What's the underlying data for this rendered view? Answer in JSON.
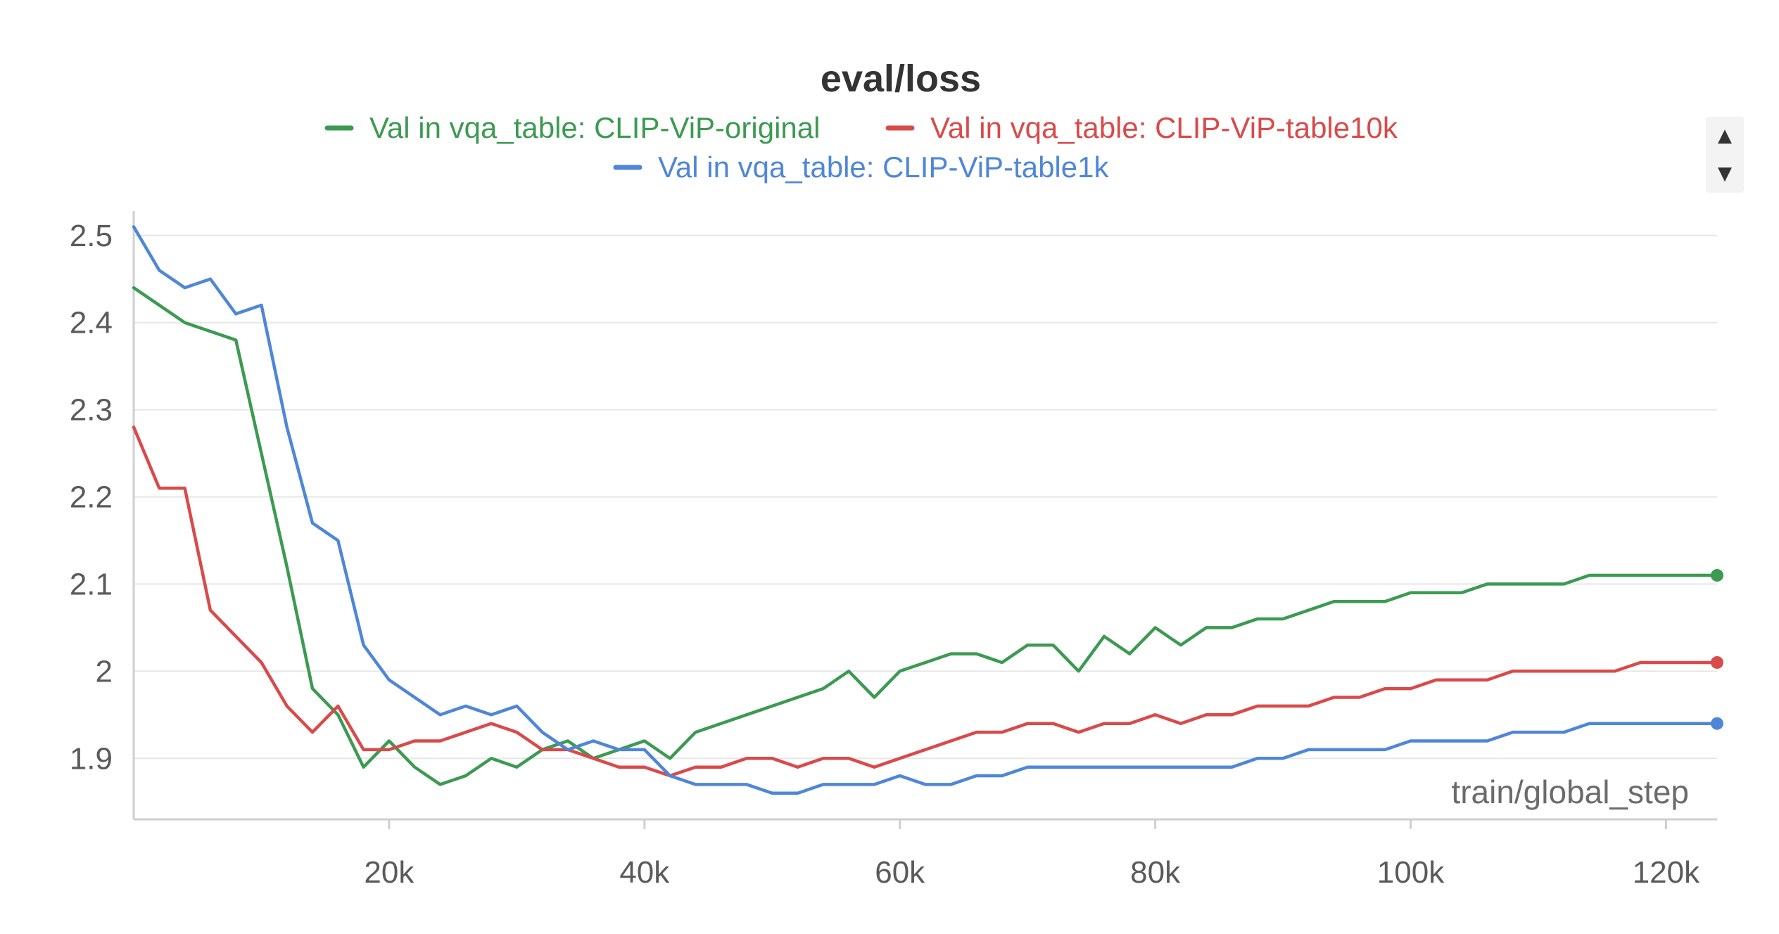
{
  "chart_data": {
    "type": "line",
    "title": "eval/loss",
    "xlabel": "train/global_step",
    "ylabel": "",
    "xlim": [
      0,
      124000
    ],
    "ylim": [
      1.83,
      2.52
    ],
    "xticks": [
      20000,
      40000,
      60000,
      80000,
      100000,
      120000
    ],
    "xtick_labels": [
      "20k",
      "40k",
      "60k",
      "80k",
      "100k",
      "120k"
    ],
    "yticks": [
      1.9,
      2.0,
      2.1,
      2.2,
      2.3,
      2.4,
      2.5
    ],
    "ytick_labels": [
      "1.9",
      "2",
      "2.1",
      "2.2",
      "2.3",
      "2.4",
      "2.5"
    ],
    "grid": true,
    "legend": "top-center",
    "series": [
      {
        "name": "Val in vqa_table: CLIP-ViP-original",
        "color": "#3c9a52",
        "x": [
          0,
          4000,
          8000,
          12000,
          14000,
          16000,
          18000,
          20000,
          22000,
          24000,
          26000,
          28000,
          30000,
          32000,
          34000,
          36000,
          38000,
          40000,
          42000,
          44000,
          46000,
          48000,
          50000,
          52000,
          54000,
          56000,
          58000,
          60000,
          62000,
          64000,
          66000,
          68000,
          70000,
          72000,
          74000,
          76000,
          78000,
          80000,
          82000,
          84000,
          86000,
          88000,
          90000,
          92000,
          94000,
          96000,
          98000,
          100000,
          102000,
          104000,
          106000,
          108000,
          110000,
          112000,
          114000,
          116000,
          118000,
          120000,
          122000,
          124000
        ],
        "y": [
          2.44,
          2.4,
          2.38,
          2.12,
          1.98,
          1.95,
          1.89,
          1.92,
          1.89,
          1.87,
          1.88,
          1.9,
          1.89,
          1.91,
          1.92,
          1.9,
          1.91,
          1.92,
          1.9,
          1.93,
          1.94,
          1.95,
          1.96,
          1.97,
          1.98,
          2.0,
          1.97,
          2.0,
          2.01,
          2.02,
          2.02,
          2.01,
          2.03,
          2.03,
          2.0,
          2.04,
          2.02,
          2.05,
          2.03,
          2.05,
          2.05,
          2.06,
          2.06,
          2.07,
          2.08,
          2.08,
          2.08,
          2.09,
          2.09,
          2.09,
          2.1,
          2.1,
          2.1,
          2.1,
          2.11,
          2.11,
          2.11,
          2.11,
          2.11,
          2.11
        ]
      },
      {
        "name": "Val in vqa_table: CLIP-ViP-table10k",
        "color": "#d94a4a",
        "x": [
          0,
          2000,
          4000,
          6000,
          8000,
          10000,
          12000,
          14000,
          16000,
          18000,
          20000,
          22000,
          24000,
          26000,
          28000,
          30000,
          32000,
          34000,
          36000,
          38000,
          40000,
          42000,
          44000,
          46000,
          48000,
          50000,
          52000,
          54000,
          56000,
          58000,
          60000,
          62000,
          64000,
          66000,
          68000,
          70000,
          72000,
          74000,
          76000,
          78000,
          80000,
          82000,
          84000,
          86000,
          88000,
          90000,
          92000,
          94000,
          96000,
          98000,
          100000,
          102000,
          104000,
          106000,
          108000,
          110000,
          112000,
          114000,
          116000,
          118000,
          120000,
          122000,
          124000
        ],
        "y": [
          2.28,
          2.21,
          2.21,
          2.07,
          2.04,
          2.01,
          1.96,
          1.93,
          1.96,
          1.91,
          1.91,
          1.92,
          1.92,
          1.93,
          1.94,
          1.93,
          1.91,
          1.91,
          1.9,
          1.89,
          1.89,
          1.88,
          1.89,
          1.89,
          1.9,
          1.9,
          1.89,
          1.9,
          1.9,
          1.89,
          1.9,
          1.91,
          1.92,
          1.93,
          1.93,
          1.94,
          1.94,
          1.93,
          1.94,
          1.94,
          1.95,
          1.94,
          1.95,
          1.95,
          1.96,
          1.96,
          1.96,
          1.97,
          1.97,
          1.98,
          1.98,
          1.99,
          1.99,
          1.99,
          2.0,
          2.0,
          2.0,
          2.0,
          2.0,
          2.01,
          2.01,
          2.01,
          2.01
        ]
      },
      {
        "name": "Val in vqa_table: CLIP-ViP-table1k",
        "color": "#4f86d8",
        "x": [
          0,
          2000,
          4000,
          6000,
          8000,
          10000,
          12000,
          14000,
          16000,
          18000,
          20000,
          22000,
          24000,
          26000,
          28000,
          30000,
          32000,
          34000,
          36000,
          38000,
          40000,
          42000,
          44000,
          46000,
          48000,
          50000,
          52000,
          54000,
          56000,
          58000,
          60000,
          62000,
          64000,
          66000,
          68000,
          70000,
          72000,
          74000,
          76000,
          78000,
          80000,
          82000,
          84000,
          86000,
          88000,
          90000,
          92000,
          94000,
          96000,
          98000,
          100000,
          102000,
          104000,
          106000,
          108000,
          110000,
          112000,
          114000,
          116000,
          118000,
          120000,
          122000,
          124000
        ],
        "y": [
          2.51,
          2.46,
          2.44,
          2.45,
          2.41,
          2.42,
          2.28,
          2.17,
          2.15,
          2.03,
          1.99,
          1.97,
          1.95,
          1.96,
          1.95,
          1.96,
          1.93,
          1.91,
          1.92,
          1.91,
          1.91,
          1.88,
          1.87,
          1.87,
          1.87,
          1.86,
          1.86,
          1.87,
          1.87,
          1.87,
          1.88,
          1.87,
          1.87,
          1.88,
          1.88,
          1.89,
          1.89,
          1.89,
          1.89,
          1.89,
          1.89,
          1.89,
          1.89,
          1.89,
          1.9,
          1.9,
          1.91,
          1.91,
          1.91,
          1.91,
          1.92,
          1.92,
          1.92,
          1.92,
          1.93,
          1.93,
          1.93,
          1.94,
          1.94,
          1.94,
          1.94,
          1.94,
          1.94
        ]
      }
    ]
  }
}
